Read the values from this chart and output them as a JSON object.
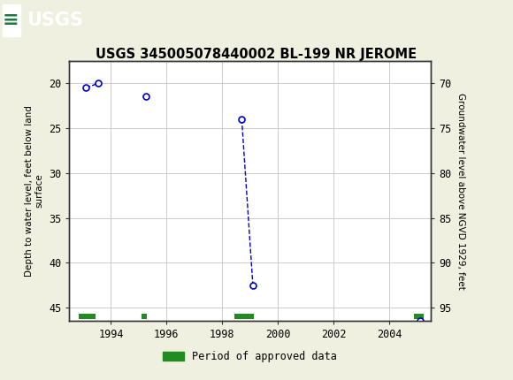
{
  "title": "USGS 345005078440002 BL-199 NR JEROME",
  "ylabel_left": "Depth to water level, feet below land\nsurface",
  "ylabel_right": "Groundwater level above NGVD 1929, feet",
  "xlim": [
    1992.5,
    2005.5
  ],
  "ylim_left": [
    17.5,
    46.5
  ],
  "ylim_right": [
    96.5,
    67.5
  ],
  "xticks": [
    1994,
    1996,
    1998,
    2000,
    2002,
    2004
  ],
  "yticks_left": [
    20,
    25,
    30,
    35,
    40,
    45
  ],
  "yticks_right": [
    95,
    90,
    85,
    80,
    75,
    70
  ],
  "data_points_x": [
    1993.1,
    1993.55,
    1995.25,
    1998.7,
    1999.1,
    2005.1
  ],
  "data_points_y": [
    20.5,
    20.0,
    21.5,
    24.0,
    42.5,
    46.5
  ],
  "connected_line_1": [
    0,
    1
  ],
  "connected_line_2": [
    3,
    4
  ],
  "point_color": "#0000cc",
  "line_color": "#0000cc",
  "marker_facecolor": "white",
  "marker_edgecolor": "#0000cc",
  "marker_size": 5,
  "header_bg_color": "#1a7a40",
  "grid_color": "#cccccc",
  "approved_bars": [
    {
      "x_start": 1992.85,
      "x_end": 1993.45
    },
    {
      "x_start": 1995.1,
      "x_end": 1995.28
    },
    {
      "x_start": 1998.45,
      "x_end": 1999.15
    },
    {
      "x_start": 2004.9,
      "x_end": 2005.25
    }
  ],
  "approved_bar_y": 46.0,
  "approved_bar_height": 0.6,
  "legend_label": "Period of approved data",
  "legend_color": "#228B22",
  "bg_color": "#f0f0e0",
  "plot_bg": "#ffffff",
  "fig_width": 5.8,
  "fig_height": 4.3,
  "dpi": 100
}
